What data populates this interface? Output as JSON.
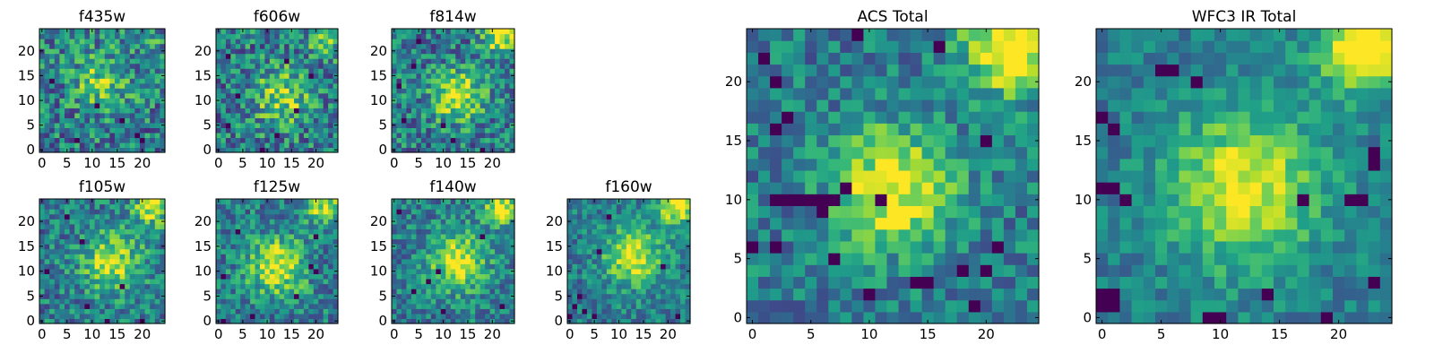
{
  "chart_data": [
    {
      "type": "heatmap",
      "title": "f435w",
      "xlabel": "",
      "ylabel": "",
      "xlim": [
        0,
        24
      ],
      "ylim": [
        0,
        24
      ],
      "grid_size": 25,
      "colormap": "viridis",
      "xticks": [
        0,
        5,
        10,
        15,
        20
      ],
      "yticks": [
        0,
        5,
        10,
        15,
        20
      ],
      "peak": [
        12,
        14
      ],
      "seed": 11,
      "noise": 0.8,
      "blob_strength": 0.35,
      "blob_width": 4,
      "corner_strength": 0.1,
      "low_cells": [
        [
          7,
          2
        ],
        [
          19,
          3
        ],
        [
          20,
          2
        ],
        [
          11,
          9
        ],
        [
          2,
          14
        ],
        [
          16,
          6
        ]
      ]
    },
    {
      "type": "heatmap",
      "title": "f606w",
      "xlabel": "",
      "ylabel": "",
      "xlim": [
        0,
        24
      ],
      "ylim": [
        0,
        24
      ],
      "grid_size": 25,
      "colormap": "viridis",
      "xticks": [
        0,
        5,
        10,
        15,
        20
      ],
      "yticks": [
        0,
        5,
        10,
        15,
        20
      ],
      "peak": [
        13,
        11
      ],
      "seed": 23,
      "noise": 0.8,
      "blob_strength": 0.4,
      "blob_width": 4,
      "corner_strength": 0.35,
      "low_cells": [
        [
          2,
          5
        ],
        [
          12,
          3
        ],
        [
          16,
          8
        ],
        [
          9,
          0
        ],
        [
          4,
          11
        ],
        [
          19,
          15
        ],
        [
          2,
          19
        ],
        [
          14,
          18
        ]
      ]
    },
    {
      "type": "heatmap",
      "title": "f814w",
      "xlabel": "",
      "ylabel": "",
      "xlim": [
        0,
        24
      ],
      "ylim": [
        0,
        24
      ],
      "grid_size": 25,
      "colormap": "viridis",
      "xticks": [
        0,
        5,
        10,
        15,
        20
      ],
      "yticks": [
        0,
        5,
        10,
        15,
        20
      ],
      "peak": [
        13,
        11
      ],
      "seed": 37,
      "noise": 0.75,
      "blob_strength": 0.55,
      "blob_width": 3.5,
      "corner_strength": 0.55,
      "low_cells": [
        [
          5,
          22
        ],
        [
          1,
          13
        ],
        [
          12,
          2
        ],
        [
          18,
          0
        ],
        [
          2,
          6
        ],
        [
          10,
          5
        ],
        [
          4,
          17
        ]
      ]
    },
    {
      "type": "heatmap",
      "title": "f105w",
      "xlabel": "",
      "ylabel": "",
      "xlim": [
        0,
        24
      ],
      "ylim": [
        0,
        24
      ],
      "grid_size": 25,
      "colormap": "viridis",
      "xticks": [
        0,
        5,
        10,
        15,
        20
      ],
      "yticks": [
        0,
        5,
        10,
        15,
        20
      ],
      "peak": [
        14,
        12
      ],
      "seed": 41,
      "noise": 0.65,
      "blob_strength": 0.5,
      "blob_width": 4,
      "corner_strength": 0.5,
      "low_cells": [
        [
          5,
          21
        ],
        [
          1,
          10
        ],
        [
          9,
          3
        ],
        [
          8,
          16
        ],
        [
          16,
          7
        ],
        [
          20,
          0
        ],
        [
          13,
          0
        ]
      ]
    },
    {
      "type": "heatmap",
      "title": "f125w",
      "xlabel": "",
      "ylabel": "",
      "xlim": [
        0,
        24
      ],
      "ylim": [
        0,
        24
      ],
      "grid_size": 25,
      "colormap": "viridis",
      "xticks": [
        0,
        5,
        10,
        15,
        20
      ],
      "yticks": [
        0,
        5,
        10,
        15,
        20
      ],
      "peak": [
        12,
        11
      ],
      "seed": 53,
      "noise": 0.65,
      "blob_strength": 0.55,
      "blob_width": 4,
      "corner_strength": 0.5,
      "low_cells": [
        [
          1,
          9
        ],
        [
          1,
          0
        ],
        [
          20,
          10
        ],
        [
          19,
          11
        ],
        [
          7,
          1
        ],
        [
          16,
          5
        ],
        [
          20,
          17
        ],
        [
          4,
          18
        ]
      ]
    },
    {
      "type": "heatmap",
      "title": "f140w",
      "xlabel": "",
      "ylabel": "",
      "xlim": [
        0,
        24
      ],
      "ylim": [
        0,
        24
      ],
      "grid_size": 25,
      "colormap": "viridis",
      "xticks": [
        0,
        5,
        10,
        15,
        20
      ],
      "yticks": [
        0,
        5,
        10,
        15,
        20
      ],
      "peak": [
        13,
        12
      ],
      "seed": 67,
      "noise": 0.6,
      "blob_strength": 0.55,
      "blob_width": 4,
      "corner_strength": 0.55,
      "low_cells": [
        [
          9,
          10
        ],
        [
          7,
          8
        ],
        [
          10,
          2
        ],
        [
          1,
          22
        ],
        [
          18,
          17
        ],
        [
          4,
          6
        ],
        [
          22,
          3
        ]
      ]
    },
    {
      "type": "heatmap",
      "title": "f160w",
      "xlabel": "",
      "ylabel": "",
      "xlim": [
        0,
        24
      ],
      "ylim": [
        0,
        24
      ],
      "grid_size": 25,
      "colormap": "viridis",
      "xticks": [
        0,
        5,
        10,
        15,
        20
      ],
      "yticks": [
        0,
        5,
        10,
        15,
        20
      ],
      "peak": [
        13,
        13
      ],
      "seed": 79,
      "noise": 0.55,
      "blob_strength": 0.55,
      "blob_width": 4,
      "corner_strength": 0.6,
      "low_cells": [
        [
          2,
          5
        ],
        [
          1,
          3
        ],
        [
          3,
          2
        ],
        [
          0,
          1
        ],
        [
          5,
          1
        ],
        [
          8,
          21
        ],
        [
          6,
          14
        ],
        [
          19,
          11
        ],
        [
          22,
          1
        ]
      ]
    },
    {
      "type": "heatmap",
      "title": "ACS Total",
      "xlabel": "",
      "ylabel": "",
      "xlim": [
        0,
        24
      ],
      "ylim": [
        0,
        24
      ],
      "grid_size": 25,
      "colormap": "viridis",
      "xticks": [
        0,
        5,
        10,
        15,
        20
      ],
      "yticks": [
        0,
        5,
        10,
        15,
        20
      ],
      "peak": [
        12,
        11
      ],
      "seed": 97,
      "noise": 0.55,
      "blob_strength": 0.6,
      "blob_width": 3.5,
      "corner_strength": 0.75,
      "low_cells": [
        [
          2,
          10
        ],
        [
          3,
          10
        ],
        [
          4,
          10
        ],
        [
          5,
          10
        ],
        [
          6,
          10
        ],
        [
          7,
          10
        ],
        [
          8,
          11
        ],
        [
          6,
          9
        ],
        [
          0,
          6
        ],
        [
          2,
          6
        ],
        [
          7,
          5
        ],
        [
          19,
          1
        ],
        [
          18,
          4
        ],
        [
          14,
          3
        ],
        [
          10,
          2
        ],
        [
          15,
          3
        ],
        [
          21,
          6
        ],
        [
          20,
          4
        ],
        [
          2,
          20
        ],
        [
          1,
          22
        ],
        [
          9,
          24
        ],
        [
          16,
          23
        ],
        [
          2,
          16
        ],
        [
          3,
          17
        ],
        [
          11,
          10
        ],
        [
          20,
          15
        ]
      ]
    },
    {
      "type": "heatmap",
      "title": "WFC3 IR Total",
      "xlabel": "",
      "ylabel": "",
      "xlim": [
        0,
        24
      ],
      "ylim": [
        0,
        24
      ],
      "grid_size": 25,
      "colormap": "viridis",
      "xticks": [
        0,
        5,
        10,
        15,
        20
      ],
      "yticks": [
        0,
        5,
        10,
        15,
        20
      ],
      "peak": [
        12,
        11
      ],
      "seed": 113,
      "noise": 0.4,
      "blob_strength": 0.55,
      "blob_width": 4.5,
      "corner_strength": 0.7,
      "low_cells": [
        [
          5,
          21
        ],
        [
          6,
          21
        ],
        [
          0,
          17
        ],
        [
          1,
          16
        ],
        [
          0,
          11
        ],
        [
          1,
          11
        ],
        [
          2,
          10
        ],
        [
          0,
          2
        ],
        [
          1,
          2
        ],
        [
          0,
          1
        ],
        [
          1,
          1
        ],
        [
          22,
          10
        ],
        [
          21,
          10
        ],
        [
          23,
          14
        ],
        [
          23,
          13
        ],
        [
          9,
          0
        ],
        [
          10,
          0
        ],
        [
          19,
          0
        ],
        [
          17,
          10
        ],
        [
          23,
          3
        ],
        [
          14,
          2
        ],
        [
          8,
          20
        ]
      ]
    }
  ]
}
